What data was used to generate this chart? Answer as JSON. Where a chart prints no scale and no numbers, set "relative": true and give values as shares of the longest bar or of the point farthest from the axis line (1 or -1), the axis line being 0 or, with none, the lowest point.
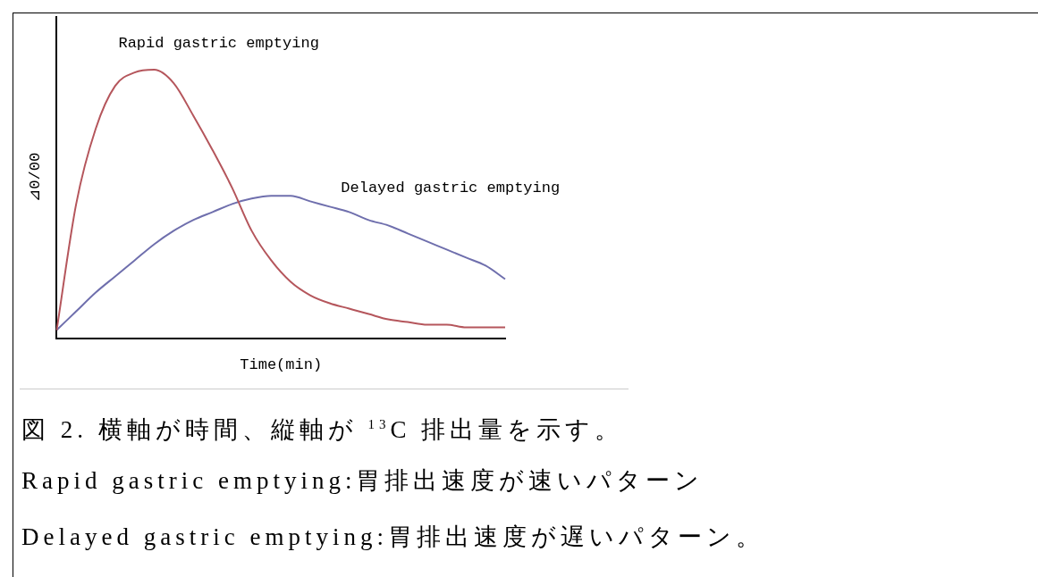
{
  "chart_data": {
    "type": "line",
    "relative": true,
    "xlabel": "Time(min)",
    "ylabel": "⊿0/00",
    "legend": false,
    "grid": false,
    "marker": "none",
    "categories": [
      null,
      null,
      null,
      null,
      null,
      null,
      null,
      null,
      null,
      null,
      null,
      null,
      null,
      null,
      null,
      null,
      null,
      null,
      null,
      null,
      null,
      null,
      null,
      null
    ],
    "series": [
      {
        "name": "Rapid gastric emptying",
        "color": "#b5565c",
        "values": [
          0.03,
          0.5,
          0.78,
          0.94,
          0.99,
          1,
          0.95,
          0.83,
          0.7,
          0.56,
          0.4,
          0.29,
          0.21,
          0.16,
          0.13,
          0.11,
          0.09,
          0.07,
          0.06,
          0.05,
          0.05,
          0.04,
          0.04,
          0.04
        ]
      },
      {
        "name": "Delayed gastric emptying",
        "color": "#6f6fad",
        "values": [
          0.03,
          0.1,
          0.17,
          0.23,
          0.29,
          0.35,
          0.4,
          0.44,
          0.47,
          0.5,
          0.52,
          0.53,
          0.53,
          0.51,
          0.49,
          0.47,
          0.44,
          0.42,
          0.39,
          0.36,
          0.33,
          0.3,
          0.27,
          0.22
        ]
      }
    ],
    "annotations": [
      "図 2. 横軸が時間、縦軸が $^{13}$C 排出量を示す。",
      "Rapid gastric emptying:胃排出速度が速いパターン",
      "Delayed gastric emptying:胃排出速度が遅いパターン。"
    ]
  }
}
